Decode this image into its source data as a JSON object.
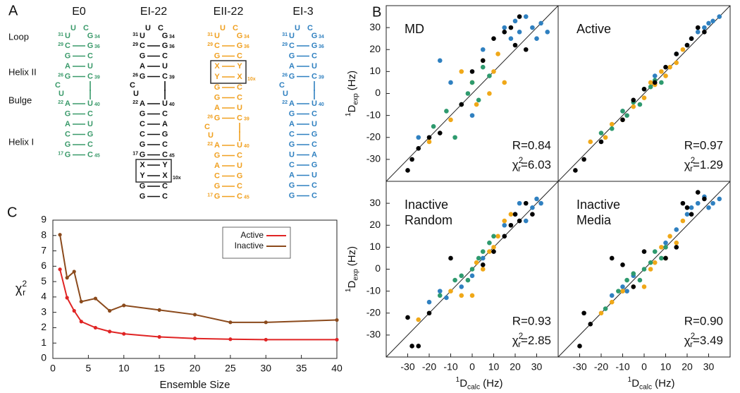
{
  "panel_labels": [
    "A",
    "B",
    "C"
  ],
  "structures": {
    "row_labels": [
      "Loop",
      "Helix II",
      "Bulge",
      "Helix I"
    ],
    "items": [
      {
        "name": "E0",
        "color": "#3a9a6a",
        "rows": [
          {
            "loop": [
              "U",
              "C"
            ]
          },
          {
            "ln": "31",
            "l": "U",
            "r": "G",
            "rn": "34"
          },
          {
            "ln": "29",
            "l": "C",
            "r": "G",
            "rn": "36"
          },
          {
            "l": "G",
            "r": "C"
          },
          {
            "l": "A",
            "r": "U"
          },
          {
            "ln": "26",
            "l": "G",
            "r": "C",
            "rn": "39"
          },
          {
            "bulge": "C"
          },
          {
            "bulge": "U"
          },
          {
            "ln": "22",
            "l": "A",
            "r": "U",
            "rn": "40"
          },
          {
            "l": "G",
            "r": "C"
          },
          {
            "l": "A",
            "r": "U"
          },
          {
            "l": "C",
            "r": "G"
          },
          {
            "l": "G",
            "r": "C"
          },
          {
            "ln": "17",
            "l": "G",
            "r": "C",
            "rn": "45"
          }
        ]
      },
      {
        "name": "EI-22",
        "color": "#111111",
        "rows": [
          {
            "loop": [
              "U",
              "C"
            ]
          },
          {
            "ln": "31",
            "l": "U",
            "r": "G",
            "rn": "34"
          },
          {
            "ln": "29",
            "l": "C",
            "r": "G",
            "rn": "36"
          },
          {
            "l": "G",
            "r": "C"
          },
          {
            "l": "A",
            "r": "U"
          },
          {
            "ln": "26",
            "l": "G",
            "r": "C",
            "rn": "39"
          },
          {
            "bulge": "C"
          },
          {
            "bulge": "U"
          },
          {
            "ln": "22",
            "l": "A",
            "r": "U",
            "rn": "40"
          },
          {
            "l": "G",
            "r": "C"
          },
          {
            "l": "C",
            "r": "A"
          },
          {
            "l": "C",
            "r": "G"
          },
          {
            "l": "G",
            "r": "C"
          },
          {
            "ln": "17",
            "l": "G",
            "r": "C",
            "rn": "45"
          },
          {
            "box": [
              {
                "l": "X",
                "r": "Y"
              },
              {
                "l": "Y",
                "r": "X"
              }
            ],
            "note": "10x"
          },
          {
            "l": "G",
            "r": "C"
          },
          {
            "l": "G",
            "r": "C"
          }
        ]
      },
      {
        "name": "EII-22",
        "color": "#f0a020",
        "rows": [
          {
            "loop": [
              "U",
              "C"
            ]
          },
          {
            "ln": "31",
            "l": "U",
            "r": "G",
            "rn": "34"
          },
          {
            "ln": "29",
            "l": "C",
            "r": "G",
            "rn": "36"
          },
          {
            "l": "G",
            "r": "C"
          },
          {
            "box": [
              {
                "l": "X",
                "r": "Y"
              },
              {
                "l": "Y",
                "r": "X"
              }
            ],
            "note": "10x"
          },
          {
            "l": "G",
            "r": "C"
          },
          {
            "l": "G",
            "r": "C"
          },
          {
            "l": "A",
            "r": "U"
          },
          {
            "ln": "26",
            "l": "G",
            "r": "C",
            "rn": "39"
          },
          {
            "bulge": "C"
          },
          {
            "bulge": "U"
          },
          {
            "ln": "22",
            "l": "A",
            "r": "U",
            "rn": "40"
          },
          {
            "l": "G",
            "r": "C"
          },
          {
            "l": "A",
            "r": "U"
          },
          {
            "l": "C",
            "r": "G"
          },
          {
            "l": "G",
            "r": "C"
          },
          {
            "ln": "17",
            "l": "G",
            "r": "C",
            "rn": "45"
          }
        ]
      },
      {
        "name": "EI-3",
        "color": "#2f80c0",
        "rows": [
          {
            "loop": [
              "U",
              "C"
            ]
          },
          {
            "ln": "31",
            "l": "U",
            "r": "G",
            "rn": "34"
          },
          {
            "ln": "29",
            "l": "C",
            "r": "G",
            "rn": "36"
          },
          {
            "l": "G",
            "r": "C"
          },
          {
            "l": "A",
            "r": "U"
          },
          {
            "ln": "26",
            "l": "G",
            "r": "C",
            "rn": "39"
          },
          {
            "bulge": "C"
          },
          {
            "bulge": "U"
          },
          {
            "ln": "22",
            "l": "A",
            "r": "U",
            "rn": "40"
          },
          {
            "l": "G",
            "r": "C"
          },
          {
            "l": "A",
            "r": "U"
          },
          {
            "l": "C",
            "r": "G"
          },
          {
            "l": "G",
            "r": "C"
          },
          {
            "l": "U",
            "r": "A"
          },
          {
            "l": "C",
            "r": "G"
          },
          {
            "l": "A",
            "r": "U"
          },
          {
            "l": "G",
            "r": "C"
          },
          {
            "l": "G",
            "r": "C"
          }
        ]
      }
    ]
  },
  "chart_data": [
    {
      "type": "scatter",
      "title": [
        "MD"
      ],
      "stats": {
        "r": "R=0.84",
        "chi": "χ",
        "chi_sub": "r",
        "chi_sup": "2",
        "chi_value": "=6.03"
      },
      "xlim": [
        -40,
        40
      ],
      "ylim": [
        -40,
        40
      ],
      "yticks": [
        -30,
        -20,
        -10,
        0,
        10,
        20,
        30
      ],
      "ylabel": {
        "sup": "1",
        "main": "D",
        "sub": "exp",
        "unit": "(Hz)"
      },
      "series": [
        {
          "color": "#2f80c0",
          "x": [
            -25,
            -15,
            -10,
            0,
            5,
            15,
            18,
            20,
            22,
            25,
            28,
            30,
            32,
            35
          ],
          "y": [
            -20,
            15,
            5,
            -10,
            20,
            30,
            25,
            33,
            28,
            35,
            30,
            25,
            32,
            28
          ]
        },
        {
          "color": "#f0a818",
          "x": [
            -20,
            -10,
            -5,
            0,
            2,
            5,
            8,
            10,
            12,
            15
          ],
          "y": [
            -22,
            -12,
            10,
            5,
            -5,
            15,
            0,
            10,
            18,
            5
          ]
        },
        {
          "color": "#2e9a6e",
          "x": [
            -18,
            -12,
            -8,
            -5,
            -2,
            0,
            3,
            5,
            8
          ],
          "y": [
            -15,
            -8,
            -20,
            -5,
            0,
            5,
            -3,
            12,
            8
          ]
        },
        {
          "color": "#000000",
          "x": [
            -30,
            -28,
            -25,
            -20,
            -15,
            -5,
            0,
            5,
            10,
            15,
            18,
            20,
            22,
            25
          ],
          "y": [
            -35,
            -30,
            -25,
            -20,
            -18,
            -5,
            10,
            15,
            25,
            28,
            30,
            22,
            35,
            20
          ]
        }
      ]
    },
    {
      "type": "scatter",
      "title": [
        "Active"
      ],
      "stats": {
        "r": "R=0.97",
        "chi": "χ",
        "chi_sub": "r",
        "chi_sup": "2",
        "chi_value": "=1.29"
      },
      "xlim": [
        -40,
        40
      ],
      "ylim": [
        -40,
        40
      ],
      "series": [
        {
          "color": "#2f80c0",
          "x": [
            -10,
            5,
            15,
            20,
            22,
            25,
            28,
            30,
            32,
            35
          ],
          "y": [
            -8,
            8,
            18,
            22,
            25,
            28,
            30,
            32,
            33,
            35
          ]
        },
        {
          "color": "#f0a818",
          "x": [
            -25,
            -18,
            -15,
            -10,
            -5,
            0,
            3,
            5,
            8,
            10,
            12,
            15,
            18
          ],
          "y": [
            -22,
            -20,
            -14,
            -12,
            -6,
            -2,
            5,
            4,
            10,
            8,
            12,
            14,
            20
          ]
        },
        {
          "color": "#2e9a6e",
          "x": [
            -20,
            -15,
            -10,
            -8,
            -5,
            -2,
            0,
            3,
            5,
            8
          ],
          "y": [
            -18,
            -16,
            -8,
            -10,
            -4,
            -5,
            2,
            3,
            6,
            5
          ]
        },
        {
          "color": "#000000",
          "x": [
            -32,
            -28,
            -20,
            -10,
            -5,
            0,
            5,
            10,
            15,
            20,
            22,
            25,
            28
          ],
          "y": [
            -35,
            -30,
            -22,
            -12,
            -3,
            2,
            5,
            12,
            18,
            22,
            25,
            30,
            28
          ]
        }
      ]
    },
    {
      "type": "scatter",
      "title": [
        "Inactive",
        "Random"
      ],
      "stats": {
        "r": "R=0.93",
        "chi": "χ",
        "chi_sub": "r",
        "chi_sup": "2",
        "chi_value": "=2.85"
      },
      "xlim": [
        -40,
        40
      ],
      "ylim": [
        -40,
        40
      ],
      "xticks": [
        -30,
        -20,
        -10,
        0,
        10,
        20,
        30
      ],
      "yticks": [
        -30,
        -20,
        -10,
        0,
        10,
        20,
        30
      ],
      "ylabel": {
        "sup": "1",
        "main": "D",
        "sub": "exp",
        "unit": "(Hz)"
      },
      "xlabel": {
        "sup": "1",
        "main": "D",
        "sub": "calc",
        "unit": "(Hz)"
      },
      "series": [
        {
          "color": "#2f80c0",
          "x": [
            -20,
            -15,
            -12,
            -5,
            0,
            5,
            15,
            20,
            22,
            25,
            28,
            30,
            32
          ],
          "y": [
            -15,
            -10,
            -13,
            -8,
            -3,
            5,
            20,
            25,
            30,
            22,
            28,
            32,
            30
          ]
        },
        {
          "color": "#f0a818",
          "x": [
            -25,
            -10,
            -5,
            0,
            2,
            5,
            8,
            10,
            12,
            15,
            18
          ],
          "y": [
            -23,
            -10,
            -12,
            -12,
            3,
            0,
            8,
            10,
            15,
            22,
            25
          ]
        },
        {
          "color": "#2e9a6e",
          "x": [
            -15,
            -8,
            -5,
            -2,
            0,
            3,
            5,
            8,
            10
          ],
          "y": [
            -12,
            -5,
            -3,
            -5,
            0,
            5,
            8,
            12,
            15
          ]
        },
        {
          "color": "#000000",
          "x": [
            -30,
            -28,
            -25,
            -20,
            -10,
            5,
            10,
            15,
            18,
            20,
            22,
            25,
            28
          ],
          "y": [
            -22,
            -35,
            -35,
            -20,
            5,
            2,
            8,
            15,
            20,
            25,
            22,
            30,
            25
          ]
        }
      ]
    },
    {
      "type": "scatter",
      "title": [
        "Inactive",
        "Media"
      ],
      "stats": {
        "r": "R=0.90",
        "chi": "χ",
        "chi_sub": "r",
        "chi_sup": "2",
        "chi_value": "=3.49"
      },
      "xlim": [
        -40,
        40
      ],
      "ylim": [
        -40,
        40
      ],
      "xticks": [
        -30,
        -20,
        -10,
        0,
        10,
        20,
        30
      ],
      "xlabel": {
        "sup": "1",
        "main": "D",
        "sub": "calc",
        "unit": "(Hz)"
      },
      "series": [
        {
          "color": "#2f80c0",
          "x": [
            -15,
            -10,
            -8,
            -5,
            10,
            15,
            20,
            22,
            25,
            28,
            30,
            32,
            35
          ],
          "y": [
            -12,
            -8,
            -10,
            -3,
            12,
            18,
            25,
            28,
            30,
            33,
            28,
            30,
            32
          ]
        },
        {
          "color": "#f0a818",
          "x": [
            -20,
            -15,
            -10,
            -5,
            0,
            3,
            5,
            8,
            10,
            12,
            15,
            18
          ],
          "y": [
            -20,
            -15,
            -10,
            -8,
            -8,
            0,
            3,
            10,
            5,
            15,
            12,
            22
          ]
        },
        {
          "color": "#2e9a6e",
          "x": [
            -18,
            -12,
            -8,
            -5,
            -2,
            0,
            3,
            5,
            8,
            10
          ],
          "y": [
            -18,
            -10,
            -5,
            -2,
            -5,
            0,
            3,
            8,
            5,
            10
          ]
        },
        {
          "color": "#000000",
          "x": [
            -30,
            -28,
            -25,
            -15,
            -10,
            -5,
            0,
            10,
            15,
            18,
            20,
            22,
            25,
            28
          ],
          "y": [
            -35,
            -20,
            -25,
            5,
            2,
            -8,
            8,
            5,
            10,
            30,
            28,
            25,
            35,
            32
          ]
        }
      ]
    },
    {
      "type": "line",
      "xlabel": "Ensemble Size",
      "ylabel": {
        "main": "χ",
        "sub": "r",
        "sup": "2"
      },
      "x": [
        1,
        2,
        3,
        4,
        6,
        8,
        10,
        15,
        20,
        25,
        30,
        40
      ],
      "xlim": [
        0,
        40
      ],
      "ylim": [
        0,
        9
      ],
      "xticks": [
        0,
        5,
        10,
        15,
        20,
        25,
        30,
        35,
        40
      ],
      "yticks": [
        0,
        1,
        2,
        3,
        4,
        5,
        6,
        7,
        8,
        9
      ],
      "legend": "upper right",
      "series": [
        {
          "name": "Active",
          "color": "#e02424",
          "values": [
            5.8,
            3.95,
            3.1,
            2.4,
            2.0,
            1.75,
            1.6,
            1.4,
            1.3,
            1.25,
            1.22,
            1.22
          ]
        },
        {
          "name": "Inactive",
          "color": "#8b4a1c",
          "values": [
            8.05,
            5.25,
            5.65,
            3.7,
            3.9,
            3.1,
            3.45,
            3.15,
            2.85,
            2.35,
            2.35,
            2.5
          ]
        }
      ]
    }
  ]
}
